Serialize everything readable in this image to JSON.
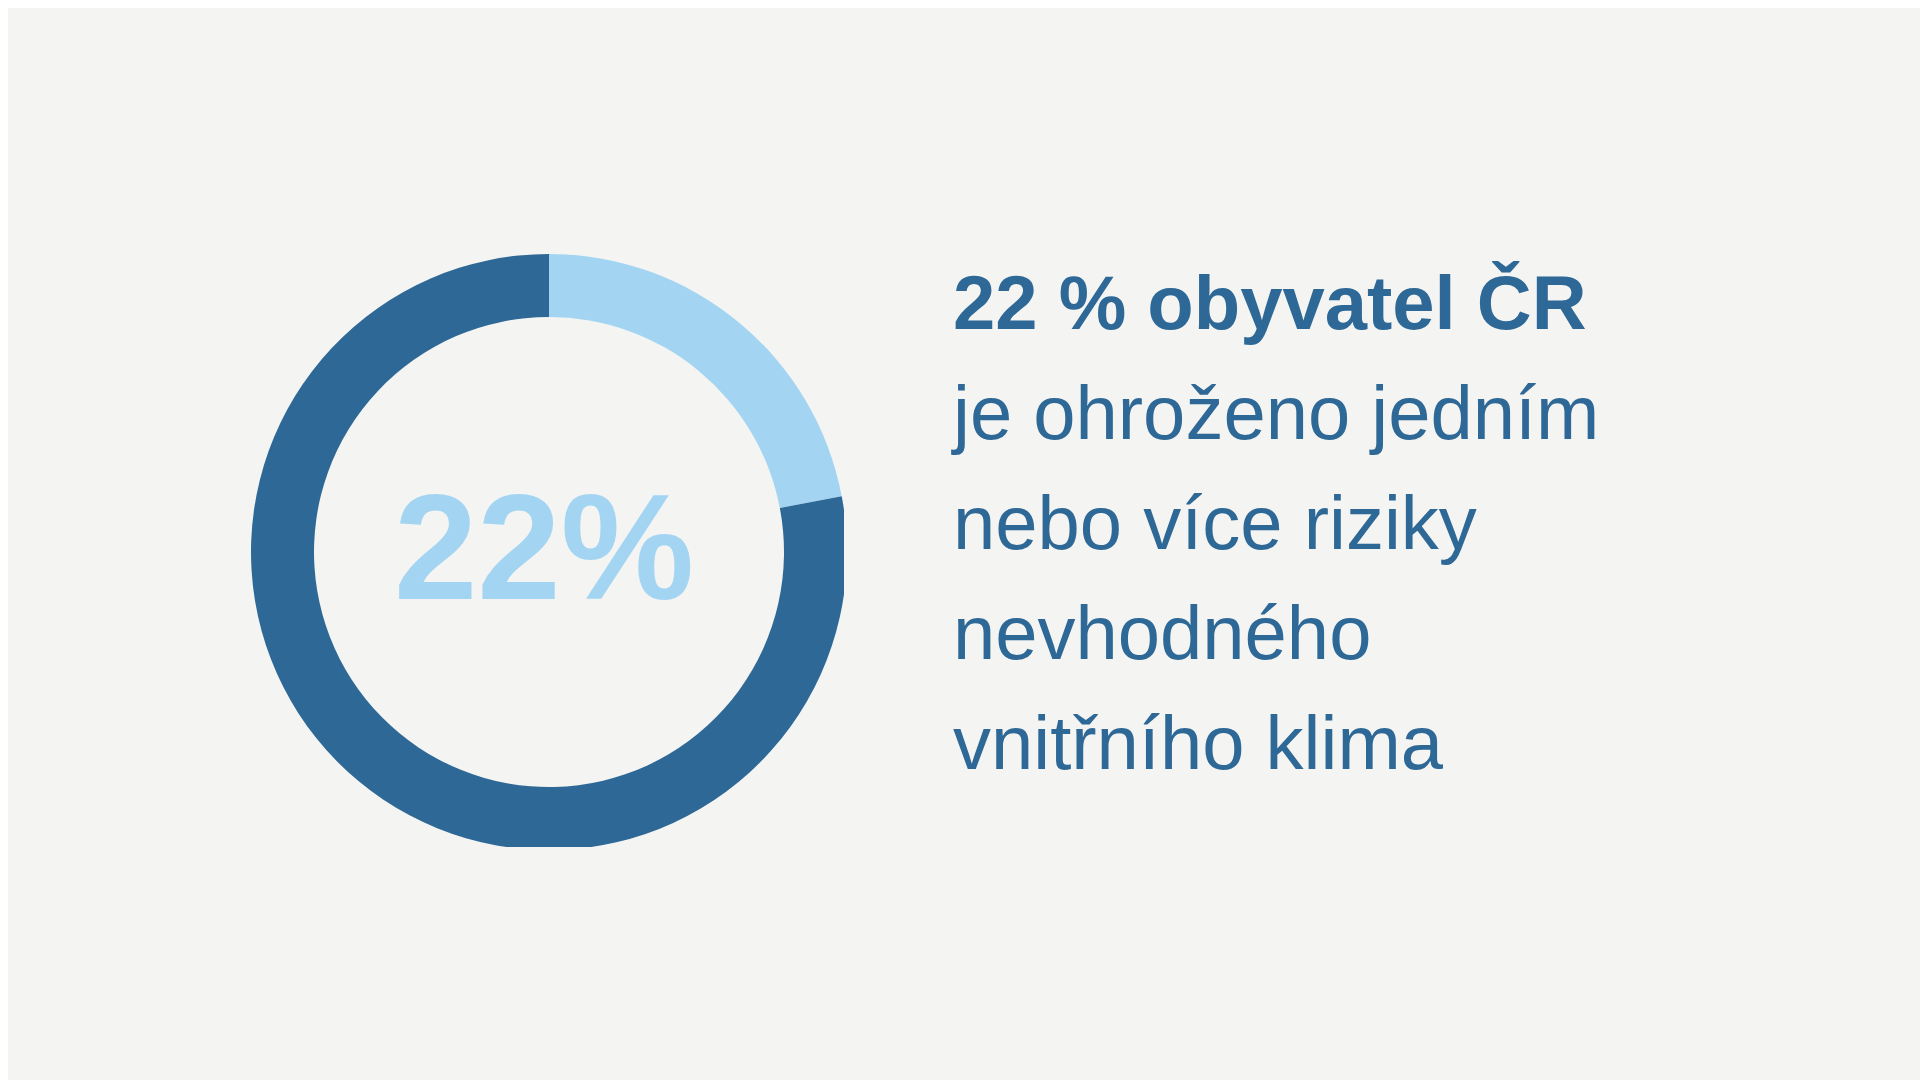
{
  "chart_data": {
    "type": "donut",
    "title": "22 % obyvatel ČR",
    "subtitle": "je ohroženo jedním nebo více riziky nevhodného vnitřního klima",
    "categories": [
      null,
      null
    ],
    "values": [
      22,
      78
    ],
    "colors": [
      "#a3d5f3",
      "#2e6896"
    ],
    "annotations": [
      "22%"
    ]
  }
}
